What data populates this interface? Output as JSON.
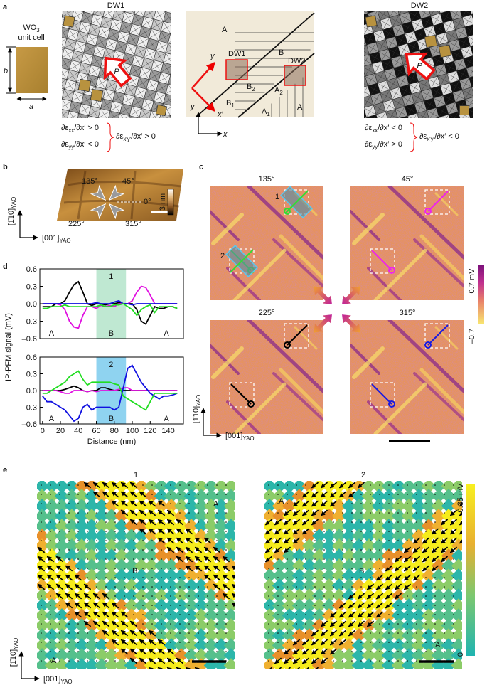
{
  "panel_labels": {
    "a": "a",
    "b": "b",
    "c": "c",
    "d": "d",
    "e": "e"
  },
  "panel_a": {
    "unit_cell_title": [
      "WO",
      "3"
    ],
    "unit_cell_subtitle": "unit cell",
    "cell_b": "b",
    "cell_a": "a",
    "dw1_title": "DW1",
    "dw2_title": "DW2",
    "dw1_polarization": "P",
    "dw2_polarization": "P",
    "dw1_conditions": [
      [
        "∂ε",
        "xx",
        "/∂x′ > 0"
      ],
      [
        "∂ε",
        "yy",
        "/∂x′ < 0"
      ]
    ],
    "dw1_result": [
      "∂ε",
      "x′y′",
      "/∂x′ > 0"
    ],
    "dw2_conditions": [
      [
        "∂ε",
        "xx",
        "/∂x′ < 0"
      ],
      [
        "∂ε",
        "yy",
        "/∂x′ > 0"
      ]
    ],
    "dw2_result": [
      "∂ε",
      "x′y′",
      "/∂x′ < 0"
    ],
    "schematic": {
      "regions": [
        [
          "A"
        ],
        [
          "B"
        ],
        [
          "B",
          "2"
        ],
        [
          "B",
          "1"
        ],
        [
          "A",
          "2"
        ],
        [
          "A",
          "1"
        ],
        [
          "A"
        ]
      ],
      "dw1": "DW1",
      "dw2": "DW2",
      "y_rot": "y",
      "x_rot": "x′",
      "y": "y",
      "x": "x"
    }
  },
  "panel_b": {
    "angles": [
      "135°",
      "45°",
      "0°",
      "225°",
      "315°"
    ],
    "height_scale": "3 nm",
    "axis_y": [
      "[1̄10]",
      "YAO"
    ],
    "axis_x": [
      "[001]",
      "YAO"
    ]
  },
  "panel_c": {
    "titles": [
      "135°",
      "45°",
      "225°",
      "315°"
    ],
    "domain_walls": [
      "1",
      "2"
    ],
    "colorbar_max": "0.7 mV",
    "colorbar_min": "–0.7",
    "axis_y": [
      "[1̄10]",
      "YAO"
    ],
    "axis_x": [
      "[001]",
      "YAO"
    ]
  },
  "chart_data": [
    {
      "type": "line",
      "y_label": "IP-PFM signal (mV)",
      "x": [
        0,
        5,
        10,
        15,
        20,
        25,
        30,
        35,
        40,
        45,
        50,
        55,
        60,
        65,
        70,
        75,
        80,
        85,
        90,
        95,
        100,
        105,
        110,
        115,
        120,
        125,
        130,
        135,
        140,
        145,
        150
      ],
      "xlim": [
        -3,
        157
      ],
      "ylim": [
        -0.6,
        0.6
      ],
      "yticks": [
        {
          "value": 0.6,
          "label": "0.6"
        },
        {
          "value": 0.3,
          "label": "0.3"
        },
        {
          "value": 0,
          "label": "0.0"
        },
        {
          "value": -0.3,
          "label": "–0.3"
        },
        {
          "value": -0.6,
          "label": "–0.6"
        }
      ],
      "band": [
        60,
        93
      ],
      "band_color": "#bfe8d2",
      "band_label": "1",
      "region_labels": [
        "A",
        "B",
        "A"
      ],
      "series": [
        {
          "color": "#000000",
          "values": [
            -0.05,
            -0.05,
            -0.05,
            0,
            0,
            0.05,
            0.2,
            0.33,
            0.38,
            0.2,
            0,
            -0.03,
            0,
            0,
            -0.02,
            0,
            0,
            0.02,
            0,
            0,
            0,
            -0.1,
            -0.3,
            -0.35,
            -0.2,
            -0.05,
            -0.08,
            -0.08,
            -0.05,
            -0.05,
            -0.08
          ]
        },
        {
          "color": "#e010e0",
          "values": [
            0,
            0,
            0,
            0,
            -0.02,
            -0.1,
            -0.3,
            -0.4,
            -0.42,
            -0.2,
            -0.05,
            -0.05,
            -0.08,
            -0.03,
            -0.05,
            -0.03,
            -0.05,
            0,
            0,
            0,
            0.05,
            0.2,
            0.3,
            0.28,
            0.15,
            0,
            0,
            0,
            0,
            0,
            0
          ]
        },
        {
          "color": "#1010e0",
          "values": [
            0,
            0,
            0,
            0,
            0,
            0,
            0,
            0,
            0,
            0,
            0,
            0,
            0.02,
            0,
            0,
            0,
            0.03,
            0.05,
            0,
            0,
            -0.02,
            0,
            0,
            0,
            0,
            0,
            0,
            0,
            0,
            0,
            0
          ]
        },
        {
          "color": "#22dd22",
          "values": [
            -0.08,
            -0.08,
            -0.05,
            -0.05,
            -0.05,
            -0.02,
            -0.05,
            -0.05,
            -0.05,
            -0.05,
            -0.05,
            -0.05,
            -0.05,
            -0.02,
            -0.05,
            -0.05,
            -0.02,
            -0.02,
            0,
            -0.05,
            -0.1,
            -0.2,
            -0.1,
            -0.05,
            -0.02,
            -0.15,
            -0.05,
            -0.05,
            -0.05,
            -0.05,
            -0.08
          ]
        }
      ]
    },
    {
      "type": "line",
      "x_label": "Distance (nm)",
      "x": [
        0,
        5,
        10,
        15,
        20,
        25,
        30,
        35,
        40,
        45,
        50,
        55,
        60,
        65,
        70,
        75,
        80,
        85,
        90,
        95,
        100,
        105,
        110,
        115,
        120,
        125,
        130,
        135,
        140,
        145,
        150
      ],
      "xlim": [
        -3,
        157
      ],
      "ylim": [
        -0.6,
        0.6
      ],
      "xticks": [
        0,
        20,
        40,
        60,
        80,
        100,
        120,
        140
      ],
      "yticks": [
        {
          "value": 0.6,
          "label": "0.6"
        },
        {
          "value": 0.3,
          "label": "0.3"
        },
        {
          "value": 0,
          "label": "0.0"
        },
        {
          "value": -0.3,
          "label": "–0.3"
        },
        {
          "value": -0.6,
          "label": "–0.6"
        }
      ],
      "band": [
        60,
        93
      ],
      "band_color": "#8fd3f0",
      "band_label": "2",
      "region_labels": [
        "A",
        "B",
        "A"
      ],
      "series": [
        {
          "color": "#000000",
          "values": [
            0,
            0,
            0,
            0,
            0,
            0.02,
            0.05,
            0.08,
            0.05,
            0,
            -0.02,
            0,
            0,
            0.05,
            0.05,
            0.02,
            0,
            0,
            0,
            0,
            0,
            0,
            0,
            0,
            0,
            0,
            0,
            0,
            0,
            0,
            0
          ]
        },
        {
          "color": "#e010e0",
          "values": [
            0,
            0,
            0,
            0,
            -0.02,
            -0.05,
            -0.05,
            0,
            0,
            0,
            -0.02,
            0,
            -0.02,
            0,
            0,
            0,
            0,
            0.02,
            0.05,
            0.05,
            0,
            0,
            0,
            0,
            0,
            0,
            0,
            0,
            0,
            0,
            0
          ]
        },
        {
          "color": "#1010e0",
          "values": [
            -0.1,
            -0.2,
            -0.2,
            -0.25,
            -0.3,
            -0.35,
            -0.45,
            -0.55,
            -0.5,
            -0.3,
            -0.25,
            -0.35,
            -0.3,
            -0.3,
            -0.3,
            -0.3,
            -0.35,
            -0.3,
            0.05,
            0.4,
            0.45,
            0.3,
            0.15,
            0.05,
            -0.05,
            -0.1,
            -0.15,
            -0.1,
            -0.1,
            -0.08,
            -0.05
          ]
        },
        {
          "color": "#22dd22",
          "values": [
            -0.05,
            -0.05,
            0,
            0.05,
            0.1,
            0.15,
            0.25,
            0.3,
            0.35,
            0.2,
            0.1,
            0.15,
            0.15,
            0.15,
            0.15,
            0.15,
            0.12,
            0.1,
            -0.1,
            -0.15,
            -0.2,
            -0.25,
            -0.3,
            -0.35,
            -0.2,
            -0.05,
            -0.05,
            -0.05,
            -0.05,
            -0.05,
            -0.05
          ]
        }
      ]
    }
  ],
  "panel_e": {
    "titles": [
      "1",
      "2"
    ],
    "map1_regions": [
      "A",
      "B",
      "A"
    ],
    "map2_regions": [
      "A",
      "B",
      "A"
    ],
    "colorbar_max": "0.35 mV",
    "colorbar_min": "0",
    "axis_y": [
      "[1̄10]",
      "YAO"
    ],
    "axis_x": [
      "[001]",
      "YAO"
    ]
  }
}
